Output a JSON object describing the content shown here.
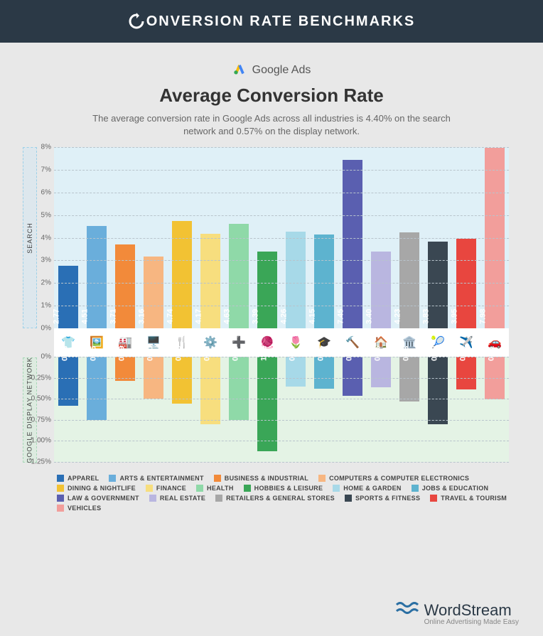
{
  "header": {
    "title": "ONVERSION RATE BENCHMARKS"
  },
  "platform": {
    "name": "Google Ads"
  },
  "chart": {
    "title": "Average Conversion Rate",
    "subtitle": "The average conversion rate in Google Ads across all industries is 4.40% on the search network and 0.57% on the display network.",
    "upper": {
      "label": "SEARCH",
      "bg": "#dff0f7",
      "ymax": 8,
      "tick_step": 1,
      "tick_suffix": "%",
      "grid_color": "#b8c4cc"
    },
    "lower": {
      "label": "GOOGLE DISPLAY NETWORK",
      "bg": "#e4f3e5",
      "ymax": 1.25,
      "tick_step": 0.25,
      "tick_suffix": "%",
      "grid_color": "#b8c4cc"
    },
    "bar_width_pct": 68,
    "label_fontsize": 11
  },
  "categories": [
    {
      "name": "APPAREL",
      "color": "#2a6fb5",
      "icon": "👕",
      "search": 2.77,
      "display": 0.58
    },
    {
      "name": "ARTS & ENTERTAINMENT",
      "color": "#6aaedb",
      "icon": "🖼️",
      "search": 4.51,
      "display": 0.75
    },
    {
      "name": "BUSINESS & INDUSTRIAL",
      "color": "#f28a3a",
      "icon": "🏭",
      "search": 3.71,
      "display": 0.29
    },
    {
      "name": "COMPUTERS & COMPUTER ELECTRONICS",
      "color": "#f7b681",
      "icon": "🖥️",
      "search": 3.16,
      "display": 0.5
    },
    {
      "name": "DINING & NIGHTLIFE",
      "color": "#f2c233",
      "icon": "🍴",
      "search": 4.74,
      "display": 0.56
    },
    {
      "name": "FINANCE",
      "color": "#f7de7e",
      "icon": "⚙️",
      "search": 4.17,
      "display": 0.8
    },
    {
      "name": "HEALTH",
      "color": "#8fd9a8",
      "icon": "➕",
      "search": 4.63,
      "display": 0.75
    },
    {
      "name": "HOBBIES & LEISURE",
      "color": "#3aa657",
      "icon": "🧶",
      "search": 3.39,
      "display": 1.12
    },
    {
      "name": "HOME & GARDEN",
      "color": "#a7d9e8",
      "icon": "🌷",
      "search": 4.26,
      "display": 0.35
    },
    {
      "name": "JOBS & EDUCATION",
      "color": "#5db3cf",
      "icon": "🎓",
      "search": 4.15,
      "display": 0.38
    },
    {
      "name": "LAW & GOVERNMENT",
      "color": "#5a5fb0",
      "icon": "🔨",
      "search": 7.45,
      "display": 0.46
    },
    {
      "name": "REAL ESTATE",
      "color": "#b9b6e0",
      "icon": "🏠",
      "search": 3.4,
      "display": 0.36
    },
    {
      "name": "RETAILERS & GENERAL STORES",
      "color": "#a7a7a7",
      "icon": "🏛️",
      "search": 4.23,
      "display": 0.53
    },
    {
      "name": "SPORTS & FITNESS",
      "color": "#3a4752",
      "icon": "🎾",
      "search": 3.83,
      "display": 0.8
    },
    {
      "name": "TRAVEL & TOURISM",
      "color": "#e8463f",
      "icon": "✈️",
      "search": 3.95,
      "display": 0.39
    },
    {
      "name": "VEHICLES",
      "color": "#f29e9b",
      "icon": "🚗",
      "search": 7.98,
      "display": 0.51
    }
  ],
  "brand": {
    "name": "WordStream",
    "tagline": "Online Advertising Made Easy",
    "color": "#2b6fa3"
  }
}
